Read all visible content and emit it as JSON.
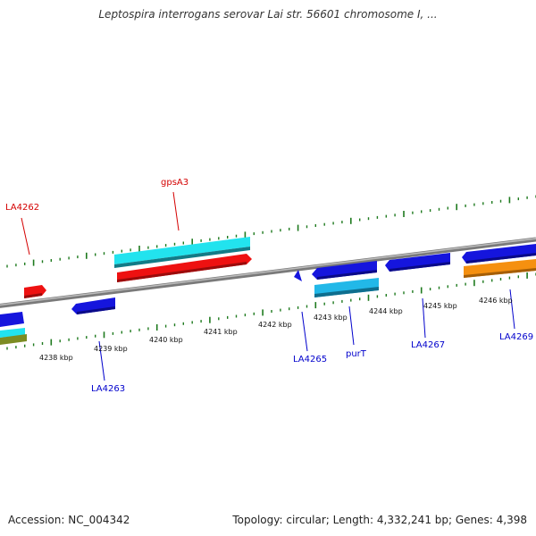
{
  "title": "Leptospira interrogans serovar Lai str. 56601 chromosome I, ...",
  "footer": {
    "accession": "Accession: NC_004342",
    "summary": "Topology: circular; Length: 4,332,241 bp; Genes: 4,398"
  },
  "scale_labels": [
    "4238 kbp",
    "4239 kbp",
    "4240 kbp",
    "4241 kbp",
    "4242 kbp",
    "4243 kbp",
    "4244 kbp",
    "4245 kbp",
    "4246 kbp"
  ],
  "gene_labels": [
    {
      "text": "gpsA3",
      "color": "#d40000"
    },
    {
      "text": "LA4262",
      "color": "#d40000"
    },
    {
      "text": "LA4263",
      "color": "#0000cc"
    },
    {
      "text": "LA4265",
      "color": "#0000cc"
    },
    {
      "text": "purT",
      "color": "#0000cc"
    },
    {
      "text": "LA4267",
      "color": "#0000cc"
    },
    {
      "text": "LA4269",
      "color": "#0000cc"
    }
  ],
  "colors": {
    "backbone": "#8c8c8c",
    "tick": "#1e7a1e",
    "forward_gene": "#ee1111",
    "reverse_gene": "#1515dd",
    "cds_forward": "#22e3ee",
    "cds_reverse": "#22b8e8",
    "orange_feature": "#f59010",
    "olive_feature": "#7c8c22"
  }
}
